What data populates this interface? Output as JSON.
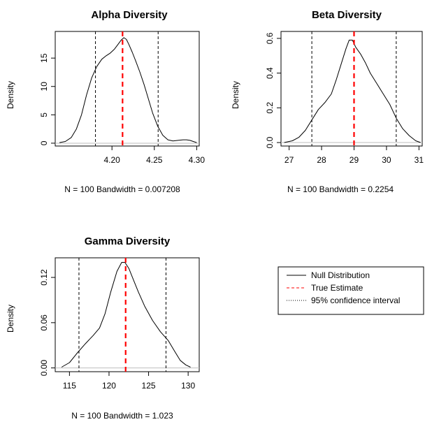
{
  "chart_data": [
    {
      "type": "line",
      "title": "Alpha Diversity",
      "ylabel": "Density",
      "xlabel": "N = 100   Bandwidth = 0.007208",
      "xlim": [
        4.133,
        4.303
      ],
      "ylim": [
        -0.5,
        19.7
      ],
      "xticks": [
        4.2,
        4.25,
        4.3
      ],
      "xtick_labels": [
        "4.20",
        "4.25",
        "4.30"
      ],
      "yticks": [
        0,
        5,
        10,
        15
      ],
      "ytick_labels": [
        "0",
        "5",
        "10",
        "15"
      ],
      "series": [
        {
          "role": "density",
          "x": [
            4.138,
            4.145,
            4.152,
            4.158,
            4.164,
            4.17,
            4.176,
            4.182,
            4.188,
            4.193,
            4.198,
            4.203,
            4.207,
            4.211,
            4.214,
            4.217,
            4.22,
            4.224,
            4.228,
            4.233,
            4.238,
            4.243,
            4.248,
            4.254,
            4.26,
            4.266,
            4.272,
            4.278,
            4.284,
            4.288,
            4.292,
            4.296,
            4.3
          ],
          "y": [
            0.1,
            0.3,
            1.0,
            2.5,
            5.0,
            8.5,
            11.5,
            13.5,
            14.8,
            15.4,
            15.9,
            16.6,
            17.4,
            18.2,
            18.6,
            18.3,
            17.4,
            16.0,
            14.5,
            12.5,
            10.3,
            7.8,
            5.3,
            3.0,
            1.4,
            0.6,
            0.4,
            0.5,
            0.6,
            0.6,
            0.5,
            0.3,
            0.1
          ]
        }
      ],
      "true_estimate": 4.2125,
      "ci": [
        4.1805,
        4.2545
      ]
    },
    {
      "type": "line",
      "title": "Beta Diversity",
      "ylabel": "Density",
      "xlabel": "N = 100   Bandwidth = 0.2254",
      "xlim": [
        26.75,
        31.1
      ],
      "ylim": [
        -0.02,
        0.64
      ],
      "xticks": [
        27,
        28,
        29,
        30,
        31
      ],
      "xtick_labels": [
        "27",
        "28",
        "29",
        "30",
        "31"
      ],
      "yticks": [
        0.0,
        0.2,
        0.4,
        0.6
      ],
      "ytick_labels": [
        "0.0",
        "0.2",
        "0.4",
        "0.6"
      ],
      "series": [
        {
          "role": "density",
          "x": [
            26.85,
            27.1,
            27.3,
            27.5,
            27.7,
            27.9,
            28.1,
            28.3,
            28.45,
            28.6,
            28.75,
            28.85,
            28.95,
            29.05,
            29.2,
            29.35,
            29.5,
            29.7,
            29.9,
            30.1,
            30.3,
            30.5,
            30.7,
            30.9,
            31.05
          ],
          "y": [
            0.0,
            0.01,
            0.03,
            0.07,
            0.13,
            0.19,
            0.23,
            0.28,
            0.36,
            0.45,
            0.54,
            0.59,
            0.59,
            0.55,
            0.51,
            0.46,
            0.4,
            0.34,
            0.28,
            0.22,
            0.14,
            0.08,
            0.04,
            0.01,
            0.0
          ]
        }
      ],
      "true_estimate": 29.0,
      "ci": [
        27.7,
        30.3
      ]
    },
    {
      "type": "line",
      "title": "Gamma Diversity",
      "ylabel": "Density",
      "xlabel": "N = 100   Bandwidth = 1.023",
      "xlim": [
        113.2,
        131.4
      ],
      "ylim": [
        -0.005,
        0.146
      ],
      "xticks": [
        115,
        120,
        125,
        130
      ],
      "xtick_labels": [
        "115",
        "120",
        "125",
        "130"
      ],
      "yticks": [
        0.0,
        0.06,
        0.12
      ],
      "ytick_labels": [
        "0.00",
        "0.06",
        "0.12"
      ],
      "series": [
        {
          "role": "density",
          "x": [
            114.0,
            115.0,
            116.0,
            117.0,
            118.0,
            118.8,
            119.5,
            120.2,
            121.0,
            121.6,
            122.0,
            122.5,
            123.0,
            123.7,
            124.5,
            125.5,
            126.5,
            127.5,
            128.3,
            129.0,
            129.7,
            130.3
          ],
          "y": [
            0.001,
            0.007,
            0.02,
            0.032,
            0.043,
            0.053,
            0.072,
            0.1,
            0.128,
            0.14,
            0.14,
            0.132,
            0.119,
            0.101,
            0.082,
            0.063,
            0.048,
            0.036,
            0.022,
            0.01,
            0.004,
            0.001
          ]
        }
      ],
      "true_estimate": 122.1,
      "ci": [
        116.2,
        127.2
      ]
    }
  ],
  "legend": {
    "entries": [
      {
        "label": "Null Distribution",
        "line_style": "solid",
        "color": "#000000"
      },
      {
        "label": "True Estimate",
        "line_style": "dashed",
        "color": "#ff0000"
      },
      {
        "label": "95% confidence interval",
        "line_style": "dotted",
        "color": "#000000"
      }
    ]
  },
  "colors": {
    "density": "#000000",
    "true_estimate": "#ff0000",
    "ci": "#000000",
    "baseline": "#bebebe"
  }
}
